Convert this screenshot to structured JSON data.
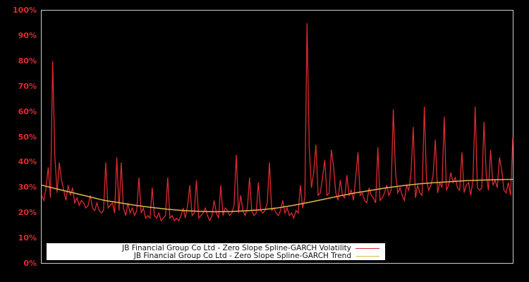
{
  "chart_data": {
    "type": "line",
    "title": "",
    "xlabel": "",
    "ylabel": "",
    "ylim": [
      0,
      100
    ],
    "y_tick_labels": [
      "0%",
      "10%",
      "20%",
      "30%",
      "40%",
      "50%",
      "60%",
      "70%",
      "80%",
      "90%",
      "100%"
    ],
    "grid": false,
    "legend_position": "bottom-left inside plot",
    "background": "#000000",
    "series": [
      {
        "name": "JB Financial Group Co Ltd - Zero Slope Spline-GARCH Volatility",
        "color": "#dd2a30",
        "values": [
          27,
          25,
          30,
          38,
          26,
          80,
          42,
          28,
          40,
          33,
          29,
          25,
          31,
          27,
          30,
          24,
          26,
          23,
          25,
          24,
          22,
          23,
          27,
          22,
          21,
          24,
          21,
          20,
          21,
          40,
          22,
          23,
          24,
          20,
          42,
          21,
          40,
          22,
          19,
          24,
          20,
          22,
          19,
          21,
          34,
          20,
          22,
          18,
          19,
          18,
          30,
          19,
          18,
          20,
          17,
          18,
          19,
          34,
          18,
          19,
          17,
          18,
          17,
          19,
          22,
          18,
          23,
          31,
          19,
          20,
          33,
          18,
          19,
          20,
          22,
          19,
          17,
          19,
          25,
          20,
          18,
          31,
          19,
          22,
          21,
          19,
          20,
          23,
          43,
          20,
          27,
          21,
          19,
          22,
          34,
          21,
          19,
          20,
          32,
          21,
          20,
          21,
          24,
          40,
          21,
          22,
          20,
          19,
          21,
          25,
          20,
          22,
          19,
          20,
          18,
          21,
          20,
          31,
          22,
          26,
          95,
          45,
          30,
          36,
          47,
          27,
          28,
          34,
          41,
          27,
          28,
          45,
          38,
          28,
          25,
          33,
          27,
          26,
          35,
          27,
          29,
          25,
          34,
          44,
          27,
          28,
          25,
          24,
          30,
          27,
          26,
          24,
          46,
          25,
          26,
          28,
          31,
          27,
          29,
          61,
          36,
          28,
          30,
          27,
          25,
          31,
          29,
          36,
          54,
          26,
          31,
          28,
          27,
          62,
          33,
          29,
          31,
          35,
          49,
          28,
          32,
          30,
          58,
          29,
          31,
          36,
          32,
          34,
          30,
          29,
          44,
          28,
          31,
          32,
          27,
          33,
          62,
          30,
          29,
          30,
          56,
          35,
          29,
          45,
          31,
          33,
          30,
          42,
          37,
          29,
          28,
          32,
          27,
          50
        ],
        "x_range": "full plot width, left to right"
      },
      {
        "name": "JB Financial Group Co Ltd - Zero Slope Spline-GARCH Trend",
        "color": "#e0b84a",
        "values": [
          31,
          29.5,
          28,
          26.5,
          25,
          24,
          23,
          22.2,
          21.5,
          21,
          20.7,
          20.5,
          20.6,
          20.9,
          21.3,
          22,
          23,
          24.2,
          25.5,
          26.8,
          28,
          29,
          30,
          30.8,
          31.5,
          32,
          32.4,
          32.8,
          33,
          33.2,
          33.3
        ]
      }
    ]
  },
  "legend": {
    "items": [
      {
        "label": "JB Financial Group Co Ltd - Zero Slope Spline-GARCH Volatility",
        "color": "#dd2a30"
      },
      {
        "label": "JB Financial Group Co Ltd - Zero Slope Spline-GARCH Trend",
        "color": "#e0b84a"
      }
    ]
  }
}
